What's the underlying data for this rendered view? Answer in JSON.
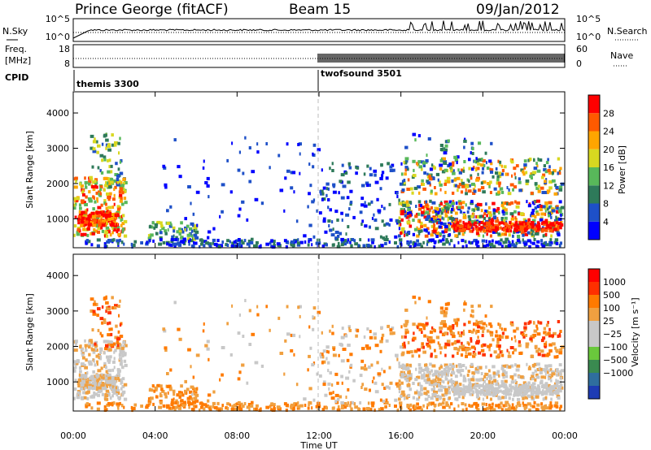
{
  "header": {
    "station": "Prince George (fitACF)",
    "beam": "Beam 15",
    "date": "09/Jan/2012"
  },
  "noise_panel": {
    "left_label": "N.Sky",
    "right_label": "N.Search",
    "left_ticks": [
      "10^5",
      "10^0"
    ],
    "right_ticks": [
      "10^5",
      "10^0"
    ]
  },
  "freq_panel": {
    "left_label_top": "Freq.",
    "left_label_bottom": "[MHz]",
    "left_ticks": [
      "18",
      "8"
    ],
    "right_label": "Nave",
    "right_ticks": [
      "60",
      "0"
    ]
  },
  "cpid_panel": {
    "label": "CPID",
    "segments": [
      "themis 3300",
      "twofsound 3501"
    ]
  },
  "time_axis": {
    "label": "Time UT",
    "ticks": [
      "00:00",
      "04:00",
      "08:00",
      "12:00",
      "16:00",
      "20:00",
      "00:00"
    ]
  },
  "chart_data": [
    {
      "type": "heatmap",
      "quantity": "power",
      "ylabel": "Slant Range [km]",
      "yticks": [
        "1000",
        "2000",
        "3000",
        "4000"
      ],
      "ylim": [
        180,
        4600
      ],
      "xlim_hours": [
        0,
        24
      ],
      "colorbar_label": "Power [dB]",
      "colorbar_ticks": [
        "4",
        "8",
        "12",
        "16",
        "20",
        "24",
        "28"
      ],
      "colorbar_colors": [
        "#0000ff",
        "#1e50c8",
        "#2e7a5a",
        "#58b85a",
        "#d8d820",
        "#ffa500",
        "#ff5a00",
        "#ff0000"
      ]
    },
    {
      "type": "heatmap",
      "quantity": "velocity",
      "ylabel": "Slant Range [km]",
      "yticks": [
        "1000",
        "2000",
        "3000",
        "4000"
      ],
      "ylim": [
        180,
        4600
      ],
      "xlim_hours": [
        0,
        24
      ],
      "colorbar_label": "Velocity [m s⁻¹]",
      "colorbar_ticks": [
        "1000",
        "500",
        "100",
        "25",
        "−25",
        "−100",
        "−500",
        "−1000"
      ],
      "colorbar_colors": [
        "#1e3cb4",
        "#2f6e9e",
        "#3a8a50",
        "#6ac83c",
        "#c8c8c8",
        "#c8c8c8",
        "#f0a040",
        "#ff7a00",
        "#ff3000",
        "#ff0000"
      ]
    }
  ]
}
